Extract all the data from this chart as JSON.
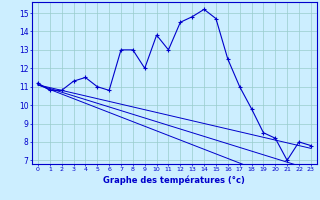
{
  "xlabel": "Graphe des températures (°c)",
  "bg_color": "#cceeff",
  "line_color": "#0000cc",
  "grid_color": "#99cccc",
  "hours": [
    0,
    1,
    2,
    3,
    4,
    5,
    6,
    7,
    8,
    9,
    10,
    11,
    12,
    13,
    14,
    15,
    16,
    17,
    18,
    19,
    20,
    21,
    22,
    23
  ],
  "main_temps": [
    11.2,
    10.8,
    10.8,
    11.3,
    11.5,
    11.0,
    10.8,
    13.0,
    13.0,
    12.0,
    13.8,
    13.0,
    14.5,
    14.8,
    15.2,
    14.7,
    12.5,
    11.0,
    9.8,
    8.5,
    8.2,
    7.0,
    8.0,
    7.8
  ],
  "trend1": [
    11.1,
    10.95,
    10.8,
    10.65,
    10.5,
    10.35,
    10.2,
    10.05,
    9.9,
    9.75,
    9.6,
    9.45,
    9.3,
    9.15,
    9.0,
    8.85,
    8.7,
    8.55,
    8.4,
    8.25,
    8.1,
    7.95,
    7.8,
    7.65
  ],
  "trend2": [
    11.1,
    10.9,
    10.7,
    10.5,
    10.3,
    10.1,
    9.9,
    9.7,
    9.5,
    9.3,
    9.1,
    8.9,
    8.7,
    8.5,
    8.3,
    8.1,
    7.9,
    7.7,
    7.5,
    7.3,
    7.1,
    6.9,
    6.7,
    6.5
  ],
  "trend3": [
    11.1,
    10.85,
    10.6,
    10.35,
    10.1,
    9.85,
    9.6,
    9.35,
    9.1,
    8.85,
    8.6,
    8.35,
    8.1,
    7.85,
    7.6,
    7.35,
    7.1,
    6.85,
    6.6,
    6.35,
    6.1,
    5.85,
    5.6,
    5.35
  ],
  "ylim": [
    6.8,
    15.6
  ],
  "yticks": [
    7,
    8,
    9,
    10,
    11,
    12,
    13,
    14,
    15
  ],
  "xlim": [
    -0.5,
    23.5
  ]
}
